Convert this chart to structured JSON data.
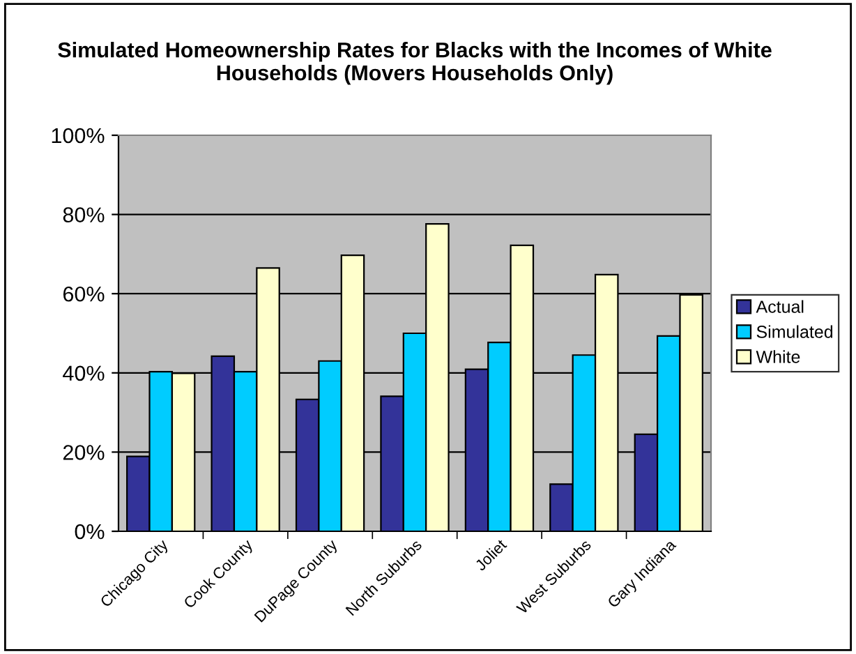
{
  "chart_data": {
    "type": "bar",
    "title": "Simulated Homeownership Rates for Blacks with the Incomes of White Households (Movers Households Only)",
    "categories": [
      "Chicago City",
      "Cook County",
      "DuPage County",
      "North Suburbs",
      "Joliet",
      "West Suburbs",
      "Gary Indiana"
    ],
    "series": [
      {
        "name": "Actual",
        "color": "#333399",
        "values": [
          18.9,
          44.2,
          33.3,
          34.1,
          40.9,
          11.9,
          24.5
        ]
      },
      {
        "name": "Simulated",
        "color": "#00ccff",
        "values": [
          40.3,
          40.3,
          43.0,
          50.0,
          47.7,
          44.5,
          49.3
        ]
      },
      {
        "name": "White",
        "color": "#ffffcc",
        "values": [
          39.9,
          66.5,
          69.7,
          77.6,
          72.2,
          64.8,
          59.7
        ]
      }
    ],
    "ylim": [
      0,
      100
    ],
    "yticks": [
      {
        "value": 0,
        "label": "0%"
      },
      {
        "value": 20,
        "label": "20%"
      },
      {
        "value": 40,
        "label": "40%"
      },
      {
        "value": 60,
        "label": "60%"
      },
      {
        "value": 80,
        "label": "80%"
      },
      {
        "value": 100,
        "label": "100%"
      }
    ],
    "grid": "y",
    "legend": "right"
  }
}
